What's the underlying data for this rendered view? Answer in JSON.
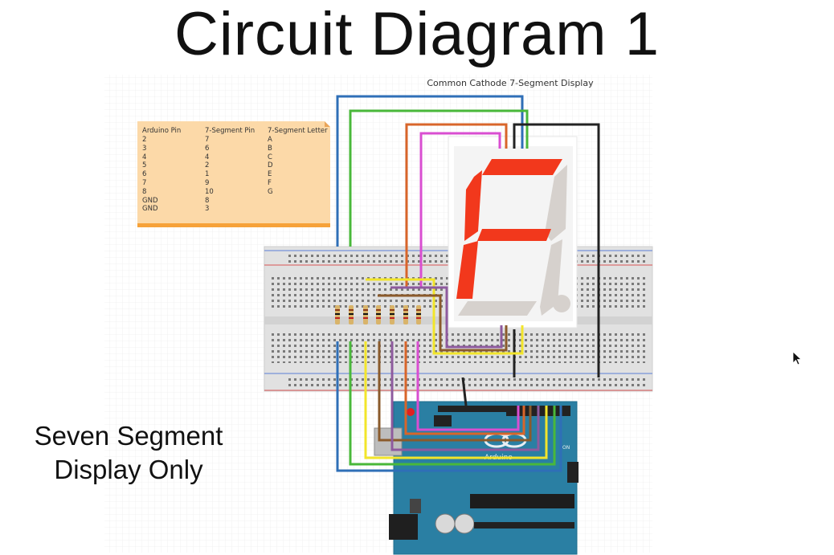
{
  "title": "Circuit Diagram 1",
  "caption": {
    "line1": "Seven Segment",
    "line2": "Display Only"
  },
  "display_label": "Common Cathode 7-Segment Display",
  "pin_table": {
    "headers": [
      "Arduino Pin",
      "7-Segment Pin",
      "7-Segment Letter"
    ],
    "rows": [
      [
        "2",
        "7",
        "A"
      ],
      [
        "3",
        "6",
        "B"
      ],
      [
        "4",
        "4",
        "C"
      ],
      [
        "5",
        "2",
        "D"
      ],
      [
        "6",
        "1",
        "E"
      ],
      [
        "7",
        "9",
        "F"
      ],
      [
        "8",
        "10",
        "G"
      ],
      [
        "GND",
        "8",
        ""
      ],
      [
        "GND",
        "3",
        ""
      ]
    ]
  },
  "board_text": {
    "arduino_logo": "Arduino",
    "on_label": "ON"
  },
  "colors": {
    "segment_lit": "#f2381c",
    "segment_off": "#d6d1cd",
    "note_bg": "#fcd9a8",
    "note_border": "#f6a23a",
    "arduino_blue": "#2a7fa3",
    "breadboard": "#e4e4e4",
    "wire_blue": "#2f6fb7",
    "wire_green": "#49b83a",
    "wire_orange": "#d8652a",
    "wire_magenta": "#d94ed1",
    "wire_black": "#222222",
    "wire_yellow": "#f2e52a",
    "wire_purple": "#8e5a9e",
    "wire_brown": "#8a5a2b"
  },
  "icons": {
    "cursor": "mouse-pointer-icon"
  }
}
